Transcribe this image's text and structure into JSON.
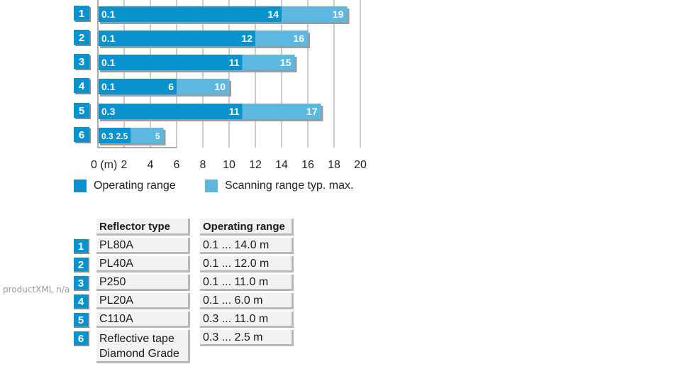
{
  "chart_data": {
    "type": "bar",
    "orientation": "horizontal",
    "stacked_ranges": true,
    "categories": [
      "1",
      "2",
      "3",
      "4",
      "5",
      "6"
    ],
    "series": [
      {
        "name": "Operating range",
        "color": "#0893cf",
        "start": [
          0.1,
          0.1,
          0.1,
          0.1,
          0.3,
          0.3
        ],
        "end": [
          14,
          12,
          11,
          6,
          11,
          2.5
        ]
      },
      {
        "name": "Scanning range typ. max.",
        "color": "#5cb8e0",
        "end": [
          19,
          16,
          15,
          10,
          17,
          5
        ]
      }
    ],
    "bar_labels": [
      [
        "0.1",
        "14",
        "19"
      ],
      [
        "0.1",
        "12",
        "16"
      ],
      [
        "0.1",
        "11",
        "15"
      ],
      [
        "0.1",
        "6",
        "10"
      ],
      [
        "0.3",
        "11",
        "17"
      ],
      [
        "0.3",
        "2.5",
        "5"
      ]
    ],
    "xlim": [
      0,
      20
    ],
    "xticks": [
      "0 (m)",
      "2",
      "4",
      "6",
      "8",
      "10",
      "12",
      "14",
      "16",
      "18",
      "20"
    ],
    "grid": true,
    "legend_position": "bottom-left"
  },
  "legend": {
    "operating": "Operating range",
    "scanning": "Scanning range typ. max."
  },
  "table": {
    "header_type": "Reflector type",
    "header_range": "Operating range",
    "rows": [
      {
        "num": "1",
        "type": "PL80A",
        "range": "0.1 ... 14.0 m"
      },
      {
        "num": "2",
        "type": "PL40A",
        "range": "0.1 ... 12.0 m"
      },
      {
        "num": "3",
        "type": "P250",
        "range": "0.1 ... 11.0 m"
      },
      {
        "num": "4",
        "type": "PL20A",
        "range": "0.1 ... 6.0 m"
      },
      {
        "num": "5",
        "type": "C110A",
        "range": "0.3 ... 11.0 m"
      },
      {
        "num": "6",
        "type": "Reflective tape Diamond Grade",
        "range": "0.3 ... 2.5 m"
      }
    ]
  },
  "side_note": "productXML n/a"
}
